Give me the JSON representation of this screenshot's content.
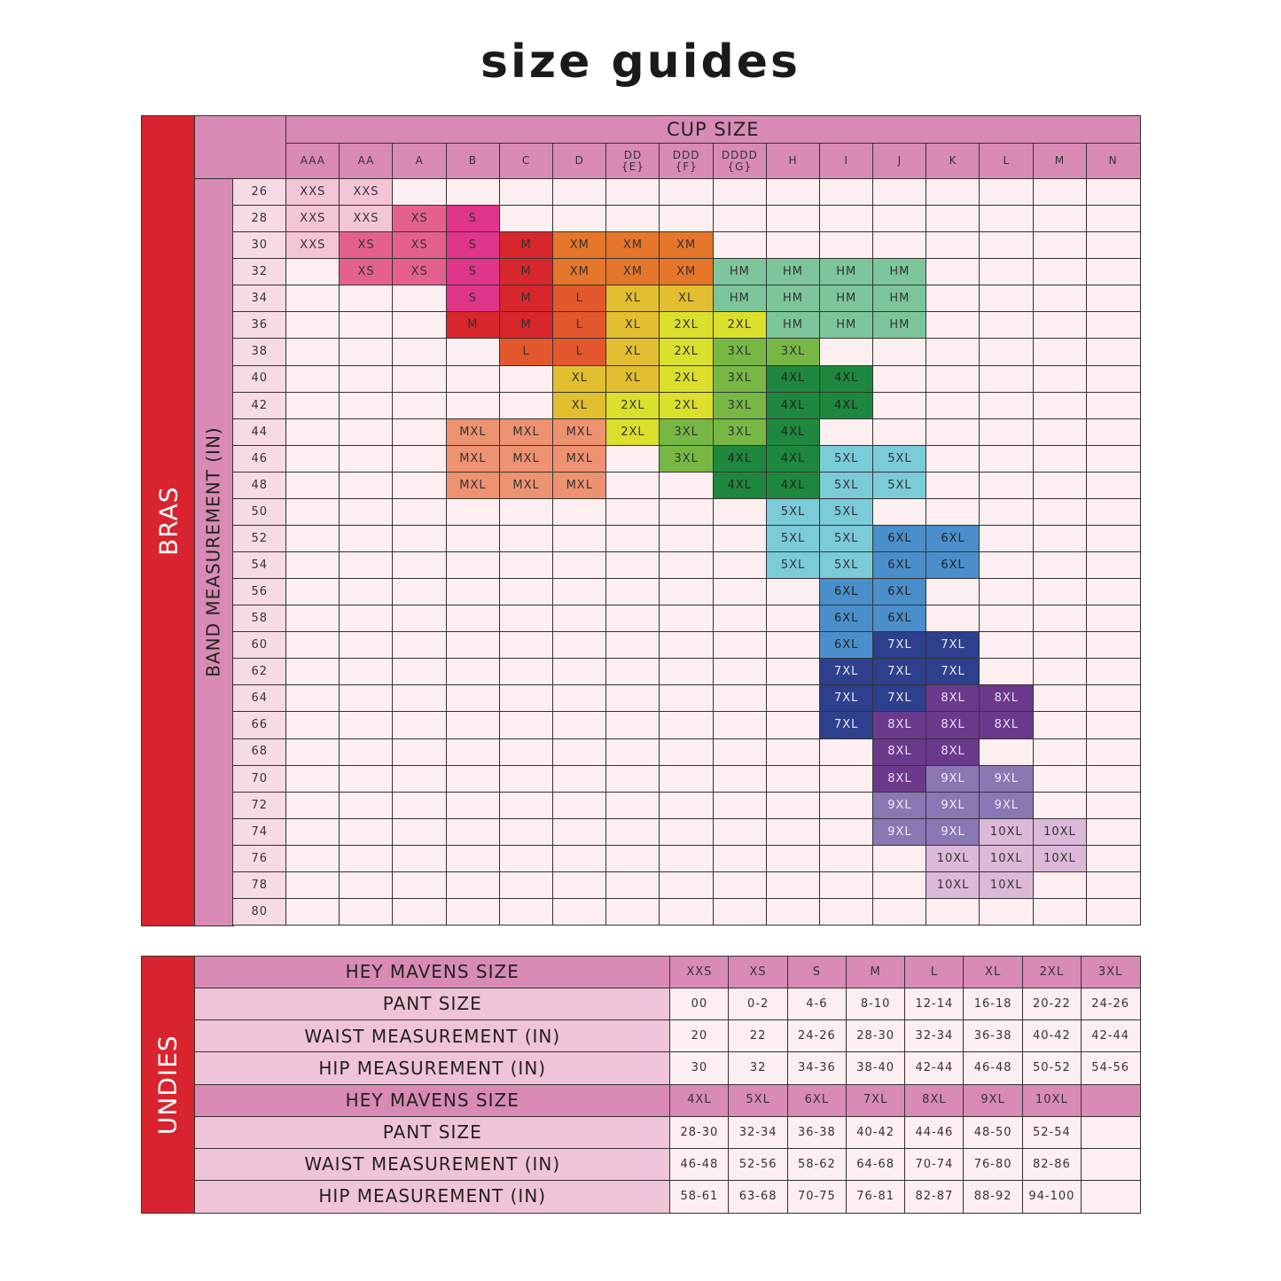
{
  "title": "size guides",
  "bras": {
    "section_label": "BRAS",
    "column_header": "CUP SIZE",
    "row_header": "BAND MEASUREMENT (IN)",
    "cups": [
      "AAA",
      "AA",
      "A",
      "B",
      "C",
      "D",
      "DD\n{E}",
      "DDD\n{F}",
      "DDDD\n{G}",
      "H",
      "I",
      "J",
      "K",
      "L",
      "M",
      "N"
    ],
    "rows": [
      {
        "band": 26,
        "sizes": [
          "XXS",
          "XXS",
          null,
          null,
          null,
          null,
          null,
          null,
          null,
          null,
          null,
          null,
          null,
          null,
          null,
          null
        ]
      },
      {
        "band": 28,
        "sizes": [
          "XXS",
          "XXS",
          "XS",
          "S",
          null,
          null,
          null,
          null,
          null,
          null,
          null,
          null,
          null,
          null,
          null,
          null
        ]
      },
      {
        "band": 30,
        "sizes": [
          "XXS",
          "XS",
          "XS",
          "S",
          "M",
          "XM",
          "XM",
          "XM",
          null,
          null,
          null,
          null,
          null,
          null,
          null,
          null
        ]
      },
      {
        "band": 32,
        "sizes": [
          null,
          "XS",
          "XS",
          "S",
          "M",
          "XM",
          "XM",
          "XM",
          "HM",
          "HM",
          "HM",
          "HM",
          null,
          null,
          null,
          null
        ]
      },
      {
        "band": 34,
        "sizes": [
          null,
          null,
          null,
          "S",
          "M",
          "L",
          "XL",
          "XL",
          "HM",
          "HM",
          "HM",
          "HM",
          null,
          null,
          null,
          null
        ]
      },
      {
        "band": 36,
        "sizes": [
          null,
          null,
          null,
          "M",
          "M",
          "L",
          "XL",
          "2XL",
          "2XL",
          "HM",
          "HM",
          "HM",
          null,
          null,
          null,
          null
        ]
      },
      {
        "band": 38,
        "sizes": [
          null,
          null,
          null,
          null,
          "L",
          "L",
          "XL",
          "2XL",
          "3XL",
          "3XL",
          null,
          null,
          null,
          null,
          null,
          null
        ]
      },
      {
        "band": 40,
        "sizes": [
          null,
          null,
          null,
          null,
          null,
          "XL",
          "XL",
          "2XL",
          "3XL",
          "4XL",
          "4XL",
          null,
          null,
          null,
          null,
          null
        ]
      },
      {
        "band": 42,
        "sizes": [
          null,
          null,
          null,
          null,
          null,
          "XL",
          "2XL",
          "2XL",
          "3XL",
          "4XL",
          "4XL",
          null,
          null,
          null,
          null,
          null
        ]
      },
      {
        "band": 44,
        "sizes": [
          null,
          null,
          null,
          "MXL",
          "MXL",
          "MXL",
          "2XL",
          "3XL",
          "3XL",
          "4XL",
          null,
          null,
          null,
          null,
          null,
          null
        ]
      },
      {
        "band": 46,
        "sizes": [
          null,
          null,
          null,
          "MXL",
          "MXL",
          "MXL",
          null,
          "3XL",
          "4XL",
          "4XL",
          "5XL",
          "5XL",
          null,
          null,
          null,
          null
        ]
      },
      {
        "band": 48,
        "sizes": [
          null,
          null,
          null,
          "MXL",
          "MXL",
          "MXL",
          null,
          null,
          "4XL",
          "4XL",
          "5XL",
          "5XL",
          null,
          null,
          null,
          null
        ]
      },
      {
        "band": 50,
        "sizes": [
          null,
          null,
          null,
          null,
          null,
          null,
          null,
          null,
          null,
          "5XL",
          "5XL",
          null,
          null,
          null,
          null,
          null
        ]
      },
      {
        "band": 52,
        "sizes": [
          null,
          null,
          null,
          null,
          null,
          null,
          null,
          null,
          null,
          "5XL",
          "5XL",
          "6XL",
          "6XL",
          null,
          null,
          null
        ]
      },
      {
        "band": 54,
        "sizes": [
          null,
          null,
          null,
          null,
          null,
          null,
          null,
          null,
          null,
          "5XL",
          "5XL",
          "6XL",
          "6XL",
          null,
          null,
          null
        ]
      },
      {
        "band": 56,
        "sizes": [
          null,
          null,
          null,
          null,
          null,
          null,
          null,
          null,
          null,
          null,
          "6XL",
          "6XL",
          null,
          null,
          null,
          null
        ]
      },
      {
        "band": 58,
        "sizes": [
          null,
          null,
          null,
          null,
          null,
          null,
          null,
          null,
          null,
          null,
          "6XL",
          "6XL",
          null,
          null,
          null,
          null
        ]
      },
      {
        "band": 60,
        "sizes": [
          null,
          null,
          null,
          null,
          null,
          null,
          null,
          null,
          null,
          null,
          "6XL",
          "7XL",
          "7XL",
          null,
          null,
          null
        ]
      },
      {
        "band": 62,
        "sizes": [
          null,
          null,
          null,
          null,
          null,
          null,
          null,
          null,
          null,
          null,
          "7XL",
          "7XL",
          "7XL",
          null,
          null,
          null
        ]
      },
      {
        "band": 64,
        "sizes": [
          null,
          null,
          null,
          null,
          null,
          null,
          null,
          null,
          null,
          null,
          "7XL",
          "7XL",
          "8XL",
          "8XL",
          null,
          null
        ]
      },
      {
        "band": 66,
        "sizes": [
          null,
          null,
          null,
          null,
          null,
          null,
          null,
          null,
          null,
          null,
          "7XL",
          "8XL",
          "8XL",
          "8XL",
          null,
          null
        ]
      },
      {
        "band": 68,
        "sizes": [
          null,
          null,
          null,
          null,
          null,
          null,
          null,
          null,
          null,
          null,
          null,
          "8XL",
          "8XL",
          null,
          null,
          null
        ]
      },
      {
        "band": 70,
        "sizes": [
          null,
          null,
          null,
          null,
          null,
          null,
          null,
          null,
          null,
          null,
          null,
          "8XL",
          "9XL",
          "9XL",
          null,
          null
        ]
      },
      {
        "band": 72,
        "sizes": [
          null,
          null,
          null,
          null,
          null,
          null,
          null,
          null,
          null,
          null,
          null,
          "9XL",
          "9XL",
          "9XL",
          null,
          null
        ]
      },
      {
        "band": 74,
        "sizes": [
          null,
          null,
          null,
          null,
          null,
          null,
          null,
          null,
          null,
          null,
          null,
          "9XL",
          "9XL",
          "10XL",
          "10XL",
          null
        ]
      },
      {
        "band": 76,
        "sizes": [
          null,
          null,
          null,
          null,
          null,
          null,
          null,
          null,
          null,
          null,
          null,
          null,
          "10XL",
          "10XL",
          "10XL",
          null
        ]
      },
      {
        "band": 78,
        "sizes": [
          null,
          null,
          null,
          null,
          null,
          null,
          null,
          null,
          null,
          null,
          null,
          null,
          "10XL",
          "10XL",
          null,
          null
        ]
      },
      {
        "band": 80,
        "sizes": [
          null,
          null,
          null,
          null,
          null,
          null,
          null,
          null,
          null,
          null,
          null,
          null,
          null,
          null,
          null,
          null
        ]
      }
    ],
    "size_colors": {
      "XXS": {
        "fill": "#f4c5d6",
        "text": "#333"
      },
      "XS": {
        "fill": "#e4618f",
        "text": "#333"
      },
      "S": {
        "fill": "#df3489",
        "text": "#333"
      },
      "M": {
        "fill": "#d8262d",
        "text": "#333"
      },
      "XM": {
        "fill": "#e6762a",
        "text": "#333"
      },
      "L": {
        "fill": "#e2582c",
        "text": "#333"
      },
      "XL": {
        "fill": "#e2bf30",
        "text": "#333"
      },
      "2XL": {
        "fill": "#dbe02d",
        "text": "#333"
      },
      "3XL": {
        "fill": "#77b845",
        "text": "#333"
      },
      "4XL": {
        "fill": "#1e873e",
        "text": "#222"
      },
      "HM": {
        "fill": "#7dc69b",
        "text": "#333"
      },
      "MXL": {
        "fill": "#ee9372",
        "text": "#333"
      },
      "5XL": {
        "fill": "#7ccbd9",
        "text": "#333"
      },
      "6XL": {
        "fill": "#4a8fcb",
        "text": "#222"
      },
      "7XL": {
        "fill": "#2e3f8d",
        "text": "#e8e8f0"
      },
      "8XL": {
        "fill": "#6b398c",
        "text": "#e8e0ee"
      },
      "9XL": {
        "fill": "#8a77b4",
        "text": "#f0ecf6"
      },
      "10XL": {
        "fill": "#ddb9d9",
        "text": "#333"
      }
    }
  },
  "undies": {
    "section_label": "UNDIES",
    "blocks": [
      {
        "rows": [
          {
            "label": "HEY MAVENS SIZE",
            "values": [
              "XXS",
              "XS",
              "S",
              "M",
              "L",
              "XL",
              "2XL",
              "3XL"
            ]
          },
          {
            "label": "PANT SIZE",
            "values": [
              "00",
              "0-2",
              "4-6",
              "8-10",
              "12-14",
              "16-18",
              "20-22",
              "24-26"
            ]
          },
          {
            "label": "WAIST MEASUREMENT (IN)",
            "values": [
              "20",
              "22",
              "24-26",
              "28-30",
              "32-34",
              "36-38",
              "40-42",
              "42-44"
            ]
          },
          {
            "label": "HIP MEASUREMENT (IN)",
            "values": [
              "30",
              "32",
              "34-36",
              "38-40",
              "42-44",
              "46-48",
              "50-52",
              "54-56"
            ]
          }
        ]
      },
      {
        "rows": [
          {
            "label": "HEY MAVENS SIZE",
            "values": [
              "4XL",
              "5XL",
              "6XL",
              "7XL",
              "8XL",
              "9XL",
              "10XL",
              null
            ]
          },
          {
            "label": "PANT SIZE",
            "values": [
              "28-30",
              "32-34",
              "36-38",
              "40-42",
              "44-46",
              "48-50",
              "52-54",
              null
            ]
          },
          {
            "label": "WAIST MEASUREMENT (IN)",
            "values": [
              "46-48",
              "52-56",
              "58-62",
              "64-68",
              "70-74",
              "76-80",
              "82-86",
              null
            ]
          },
          {
            "label": "HIP MEASUREMENT (IN)",
            "values": [
              "58-61",
              "63-68",
              "70-75",
              "76-81",
              "82-87",
              "88-92",
              "94-100",
              null
            ]
          }
        ]
      }
    ]
  }
}
